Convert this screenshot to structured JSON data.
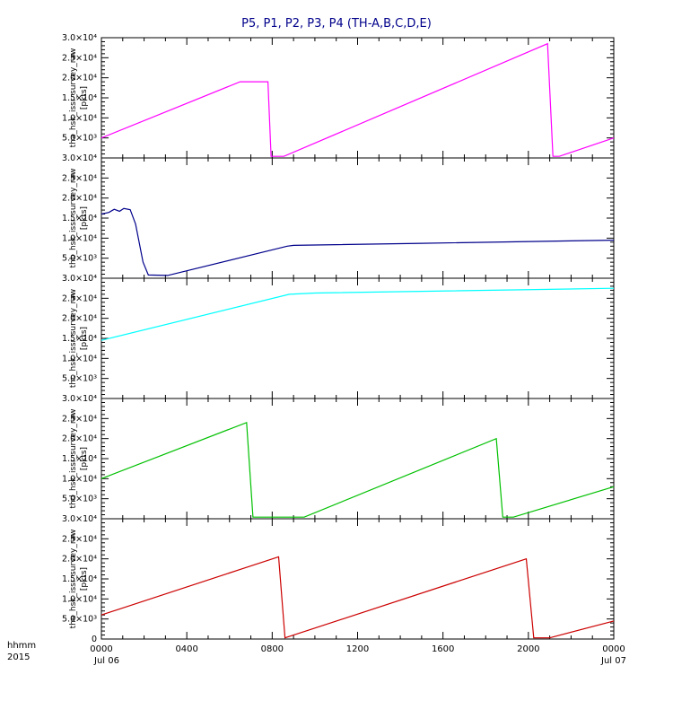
{
  "page": {
    "title": "P5, P1, P2, P3, P4 (TH-A,B,C,D,E)",
    "title_color": "#00008b",
    "footer_left_line1": "hhmm",
    "footer_left_line2": "2015",
    "x_axis": {
      "ticks": [
        {
          "hour": 0,
          "label": "0000"
        },
        {
          "hour": 4,
          "label": "0400"
        },
        {
          "hour": 8,
          "label": "0800"
        },
        {
          "hour": 12,
          "label": "1200"
        },
        {
          "hour": 16,
          "label": "1600"
        },
        {
          "hour": 20,
          "label": "2000"
        },
        {
          "hour": 24,
          "label": "0000"
        }
      ],
      "date_left": "Jul 06",
      "date_right": "Jul 07"
    },
    "y_axis": {
      "ticks": [
        {
          "value": 0,
          "label": "0"
        },
        {
          "value": 5000,
          "label": "5.0×10³"
        },
        {
          "value": 10000,
          "label": "1.0×10⁴"
        },
        {
          "value": 15000,
          "label": "1.5×10⁴"
        },
        {
          "value": 20000,
          "label": "2.0×10⁴"
        },
        {
          "value": 25000,
          "label": "2.5×10⁴"
        },
        {
          "value": 30000,
          "label": "3.0×10⁴"
        }
      ]
    }
  },
  "chart_data": {
    "type": "line",
    "title": "P5, P1, P2, P3, P4 (TH-A,B,C,D,E)",
    "xlabel": "hhmm, Jul 06 2015 to Jul 07 2015",
    "x_range_hours": [
      0,
      24
    ],
    "ylim": [
      0,
      30000
    ],
    "grid": false,
    "legend": "none",
    "panels": [
      {
        "name": "tha_hsk_issr_survey_raw",
        "unit": "[pkts]",
        "color": "#ff00ff",
        "points": [
          [
            0,
            5000
          ],
          [
            6.5,
            19000
          ],
          [
            7.8,
            19000
          ],
          [
            7.95,
            400
          ],
          [
            8.55,
            400
          ],
          [
            20.9,
            28500
          ],
          [
            21.15,
            400
          ],
          [
            21.45,
            400
          ],
          [
            24,
            5000
          ]
        ]
      },
      {
        "name": "thb_hsk_issr_survey_raw",
        "unit": "[pkts]",
        "color": "#00008b",
        "points": [
          [
            0,
            16000
          ],
          [
            0.35,
            16400
          ],
          [
            0.6,
            17200
          ],
          [
            0.85,
            16700
          ],
          [
            1.05,
            17400
          ],
          [
            1.35,
            17100
          ],
          [
            1.6,
            13500
          ],
          [
            1.95,
            4000
          ],
          [
            2.2,
            800
          ],
          [
            3.1,
            700
          ],
          [
            8.7,
            8000
          ],
          [
            9.0,
            8200
          ],
          [
            15,
            8700
          ],
          [
            24,
            9500
          ]
        ]
      },
      {
        "name": "thc_hsk_issr_survey_raw",
        "unit": "[pkts]",
        "color": "#00ffff",
        "points": [
          [
            0,
            14500
          ],
          [
            8.8,
            26000
          ],
          [
            10,
            26300
          ],
          [
            24,
            27500
          ]
        ]
      },
      {
        "name": "thd_hsk_issr_survey_raw",
        "unit": "[pkts]",
        "color": "#00c000",
        "points": [
          [
            0,
            10000
          ],
          [
            6.8,
            24000
          ],
          [
            7.1,
            400
          ],
          [
            9.5,
            400
          ],
          [
            18.5,
            20000
          ],
          [
            18.8,
            400
          ],
          [
            19.3,
            400
          ],
          [
            24,
            8000
          ]
        ]
      },
      {
        "name": "the_hsk_issr_survey_raw",
        "unit": "[pkts]",
        "color": "#cc0000",
        "points": [
          [
            0,
            6000
          ],
          [
            8.3,
            20500
          ],
          [
            8.6,
            300
          ],
          [
            19.9,
            20000
          ],
          [
            20.25,
            300
          ],
          [
            21.0,
            300
          ],
          [
            24,
            4500
          ]
        ]
      }
    ]
  }
}
